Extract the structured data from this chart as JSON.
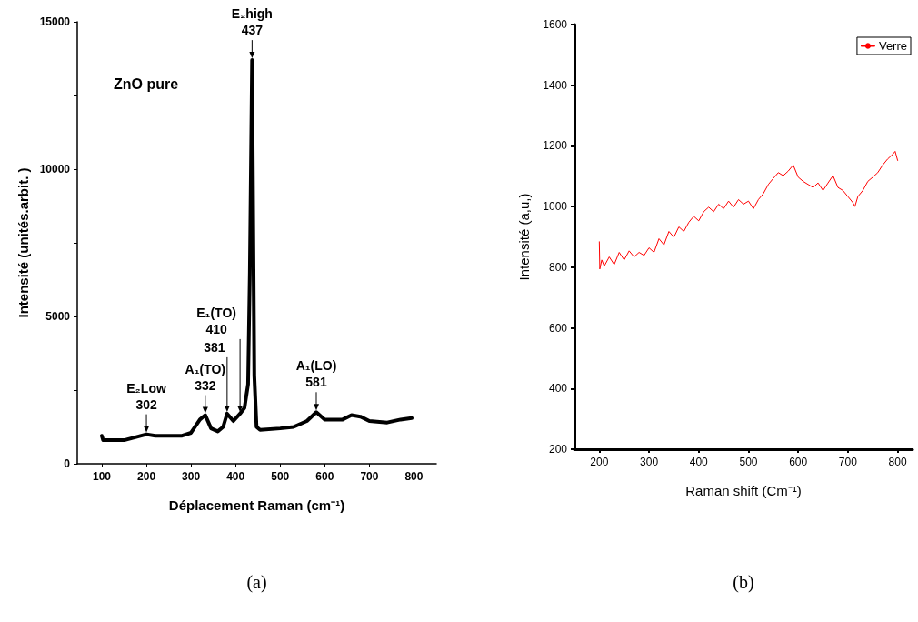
{
  "chart_data": [
    {
      "type": "line",
      "xlabel": "Déplacement Raman (cm⁻¹)",
      "ylabel": "Intensité (unités.arbit. )",
      "xlim": [
        45,
        850
      ],
      "xticks": [
        100,
        200,
        300,
        400,
        500,
        600,
        700,
        800
      ],
      "ylim": [
        0,
        15000
      ],
      "yticks": [
        0,
        {
          "value": 2500,
          "label": null
        },
        5000,
        {
          "value": 7500,
          "label": null
        },
        10000,
        {
          "value": 12500,
          "label": null
        },
        15000
      ],
      "x": [
        100,
        103,
        110,
        150,
        200,
        220,
        280,
        300,
        320,
        332,
        345,
        360,
        372,
        381,
        395,
        410,
        420,
        428,
        432,
        437,
        442,
        447,
        455,
        500,
        530,
        560,
        581,
        600,
        640,
        660,
        680,
        700,
        740,
        770,
        795
      ],
      "series": [
        {
          "color": "#000000",
          "values": [
            950,
            800,
            800,
            800,
            1000,
            950,
            950,
            1050,
            1500,
            1650,
            1200,
            1100,
            1250,
            1700,
            1450,
            1700,
            1900,
            2700,
            6500,
            13700,
            3000,
            1250,
            1150,
            1200,
            1250,
            1450,
            1750,
            1500,
            1500,
            1650,
            1600,
            1450,
            1400,
            1500,
            1550
          ]
        }
      ],
      "annotations": [
        "ZnO pure",
        "(a)",
        {
          "text": "E₂Low\n302",
          "x": 200,
          "y": 1000
        },
        {
          "text": "A₁(TO)\n332",
          "x": 332,
          "y": 1650
        },
        {
          "text": "381",
          "x": 381,
          "y": 1700
        },
        {
          "text": "E₁(TO)\n410",
          "x": 410,
          "y": 1700
        },
        {
          "text": "E₂high\n437",
          "x": 437,
          "y": 13700
        },
        {
          "text": "A₁(LO)\n581",
          "x": 581,
          "y": 1750
        }
      ]
    },
    {
      "type": "line",
      "xlabel": "Raman shift (Cm⁻¹)",
      "ylabel": "Intensité (a,u,)",
      "xlim": [
        150,
        830
      ],
      "xticks": [
        200,
        300,
        400,
        500,
        600,
        700,
        800
      ],
      "ylim": [
        200,
        1600
      ],
      "yticks": [
        200,
        400,
        600,
        800,
        1000,
        1200,
        1400,
        1600
      ],
      "legend": "top right",
      "x": [
        200,
        201,
        205,
        210,
        220,
        230,
        240,
        250,
        260,
        270,
        280,
        290,
        300,
        310,
        320,
        330,
        340,
        350,
        360,
        370,
        380,
        390,
        400,
        410,
        420,
        430,
        440,
        450,
        460,
        470,
        480,
        490,
        500,
        510,
        520,
        530,
        540,
        550,
        560,
        570,
        580,
        590,
        600,
        610,
        620,
        630,
        640,
        650,
        660,
        670,
        680,
        690,
        700,
        710,
        714,
        720,
        730,
        740,
        750,
        760,
        770,
        780,
        790,
        795,
        800
      ],
      "series": [
        {
          "name": "Verre",
          "color": "#ff0000",
          "values": [
            884,
            794,
            824,
            804,
            834,
            809,
            849,
            824,
            854,
            834,
            849,
            839,
            864,
            849,
            894,
            874,
            918,
            899,
            933,
            918,
            948,
            968,
            953,
            983,
            998,
            983,
            1008,
            993,
            1018,
            998,
            1023,
            1008,
            1018,
            993,
            1023,
            1043,
            1073,
            1093,
            1112,
            1102,
            1117,
            1137,
            1097,
            1083,
            1073,
            1063,
            1078,
            1053,
            1078,
            1102,
            1063,
            1053,
            1033,
            1013,
            1000,
            1033,
            1053,
            1083,
            1097,
            1112,
            1137,
            1157,
            1172,
            1182,
            1152
          ]
        }
      ],
      "annotations": [
        "(b)"
      ]
    }
  ]
}
